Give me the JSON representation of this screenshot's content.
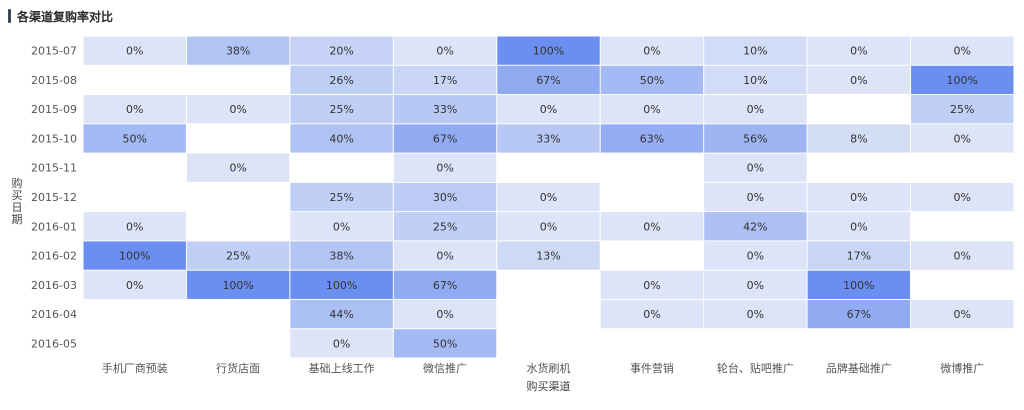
{
  "chart_data": {
    "type": "heatmap",
    "title": "各渠道复购率对比",
    "xlabel": "购买渠道",
    "ylabel": "购买日期",
    "x_categories": [
      "手机厂商预装",
      "行货店面",
      "基础上线工作",
      "微信推广",
      "水货刷机",
      "事件营销",
      "轮台、贴吧推广",
      "品牌基础推广",
      "微博推广"
    ],
    "y_categories": [
      "2015-07",
      "2015-08",
      "2015-09",
      "2015-10",
      "2015-11",
      "2015-12",
      "2016-01",
      "2016-02",
      "2016-03",
      "2016-04",
      "2016-05"
    ],
    "values": [
      [
        0,
        38,
        20,
        0,
        100,
        0,
        10,
        0,
        0
      ],
      [
        null,
        null,
        26,
        17,
        67,
        50,
        10,
        0,
        100
      ],
      [
        0,
        0,
        25,
        33,
        0,
        0,
        0,
        null,
        25
      ],
      [
        50,
        null,
        40,
        67,
        33,
        63,
        56,
        8,
        0
      ],
      [
        null,
        0,
        null,
        0,
        null,
        null,
        0,
        null,
        null
      ],
      [
        null,
        null,
        25,
        30,
        0,
        null,
        0,
        0,
        0
      ],
      [
        0,
        null,
        0,
        25,
        0,
        0,
        42,
        0,
        null
      ],
      [
        100,
        25,
        38,
        0,
        13,
        null,
        0,
        17,
        0
      ],
      [
        0,
        100,
        100,
        67,
        null,
        0,
        0,
        100,
        null
      ],
      [
        null,
        null,
        44,
        0,
        null,
        0,
        0,
        67,
        0
      ],
      [
        null,
        null,
        0,
        50,
        null,
        null,
        null,
        null,
        null
      ]
    ],
    "value_suffix": "%",
    "color_low": "#dde4f7",
    "color_high": "#6a8ff0"
  }
}
